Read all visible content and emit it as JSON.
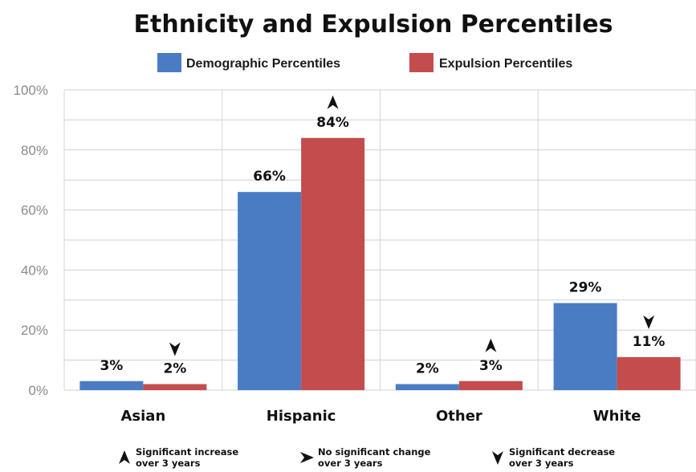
{
  "chart_data": {
    "type": "bar",
    "title": "Ethnicity and Expulsion Percentiles",
    "categories": [
      "Asian",
      "Hispanic",
      "Other",
      "White"
    ],
    "series": [
      {
        "name": "Demographic Percentiles",
        "color": "#4a7cc4",
        "values": [
          3,
          66,
          2,
          29
        ],
        "labels": [
          "3%",
          "66%",
          "2%",
          "29%"
        ],
        "markers": [
          "",
          "",
          "",
          ""
        ]
      },
      {
        "name": "Expulsion Percentiles",
        "color": "#c44c4c",
        "values": [
          2,
          84,
          3,
          11
        ],
        "labels": [
          "2%",
          "84%",
          "3%",
          "11%"
        ],
        "markers": [
          "decrease",
          "increase",
          "increase",
          "decrease"
        ]
      }
    ],
    "ylim": [
      0,
      100
    ],
    "yticks": [
      "0%",
      "20%",
      "40%",
      "60%",
      "80%",
      "100%"
    ],
    "grid": true,
    "legend_position": "top-center",
    "key": [
      {
        "icon": "increase",
        "line1": "Significant increase",
        "line2": "over 3 years"
      },
      {
        "icon": "no-change",
        "line1": "No significant change",
        "line2": "over 3 years"
      },
      {
        "icon": "decrease",
        "line1": "Significant decrease",
        "line2": "over 3 years"
      }
    ]
  }
}
